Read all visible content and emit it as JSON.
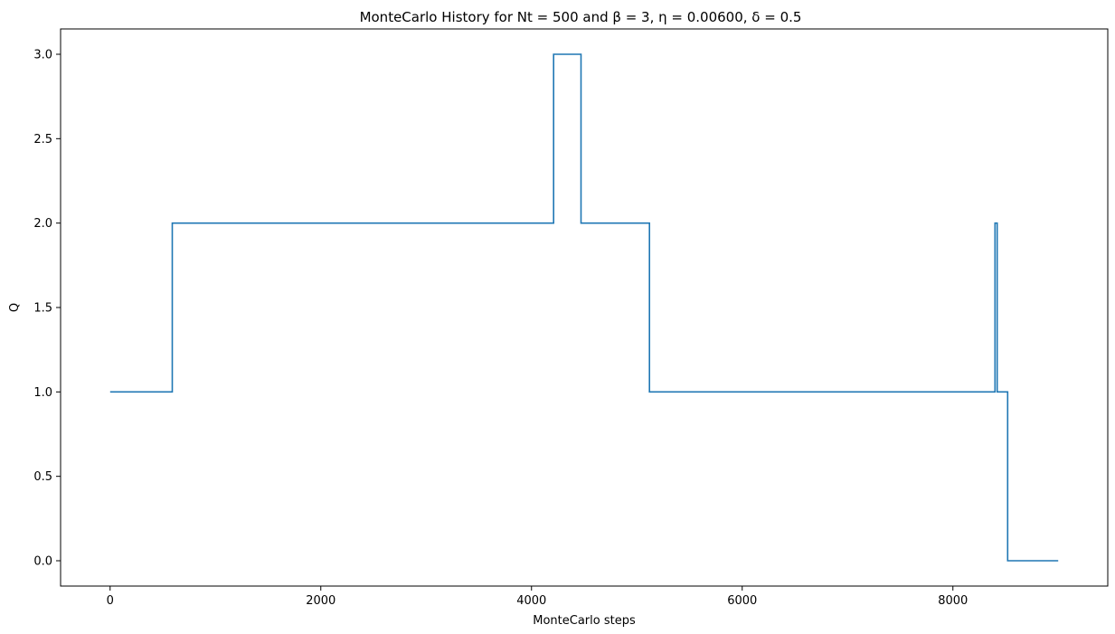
{
  "chart_data": {
    "type": "line",
    "title": "MonteCarlo History for Nt = 500 and  β = 3, η = 0.00600, δ = 0.5",
    "xlabel": "MonteCarlo steps",
    "ylabel": "Q",
    "xlim": [
      -470,
      9470
    ],
    "ylim": [
      -0.15,
      3.15
    ],
    "xticks": [
      0,
      2000,
      4000,
      6000,
      8000
    ],
    "xtick_labels": [
      "0",
      "2000",
      "4000",
      "6000",
      "8000"
    ],
    "yticks": [
      0.0,
      0.5,
      1.0,
      1.5,
      2.0,
      2.5,
      3.0
    ],
    "ytick_labels": [
      "0.0",
      "0.5",
      "1.0",
      "1.5",
      "2.0",
      "2.5",
      "3.0"
    ],
    "grid": false,
    "drawstyle": "steps",
    "series": [
      {
        "color": "#1f77b4",
        "x": [
          0,
          590,
          590,
          4210,
          4210,
          4470,
          4470,
          5120,
          5120,
          8400,
          8400,
          8420,
          8420,
          8520,
          8520,
          9000
        ],
        "y": [
          1,
          1,
          2,
          2,
          3,
          3,
          2,
          2,
          1,
          1,
          2,
          2,
          1,
          1,
          0,
          0
        ]
      }
    ]
  }
}
